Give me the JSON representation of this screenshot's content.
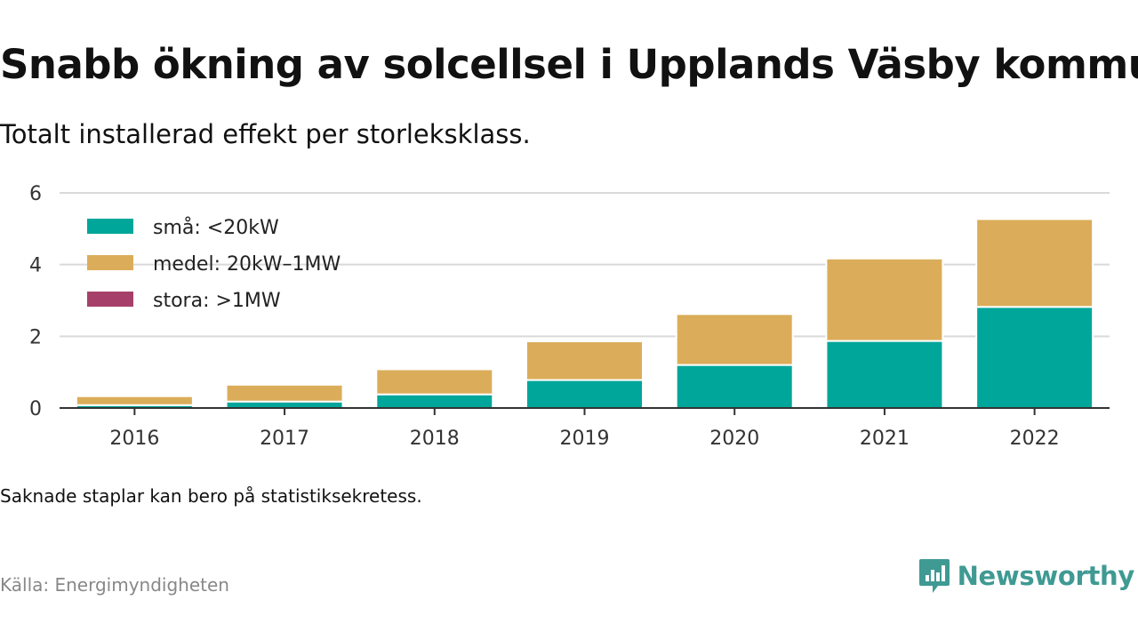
{
  "title": "Snabb ökning av solcellsel i Upplands Väsby kommun",
  "subtitle": "Totalt installerad effekt per storleksklass.",
  "note": "Saknade staplar kan bero på statistiksekretess.",
  "source": "Källa: Energimyndigheten",
  "brand": {
    "name": "Newsworthy",
    "icon": "newsworthy-logo-icon",
    "color": "#3f9a93"
  },
  "chart_data": {
    "type": "bar",
    "stacked": true,
    "categories": [
      "2016",
      "2017",
      "2018",
      "2019",
      "2020",
      "2021",
      "2022"
    ],
    "series": [
      {
        "name": "små: <20kW",
        "color": "#00a69a",
        "values": [
          0.08,
          0.18,
          0.38,
          0.78,
          1.2,
          1.87,
          2.82
        ]
      },
      {
        "name": "medel: 20kW–1MW",
        "color": "#dbad5a",
        "values": [
          0.25,
          0.47,
          0.7,
          1.08,
          1.42,
          2.3,
          2.45
        ]
      },
      {
        "name": "stora: >1MW",
        "color": "#a6406a",
        "values": [
          0,
          0,
          0,
          0,
          0,
          0,
          0
        ]
      }
    ],
    "ylim": [
      0,
      6
    ],
    "yticks": [
      "0",
      "2",
      "4",
      "6"
    ],
    "grid": true,
    "legend_position": "top-left",
    "xlabel": "",
    "ylabel": ""
  }
}
